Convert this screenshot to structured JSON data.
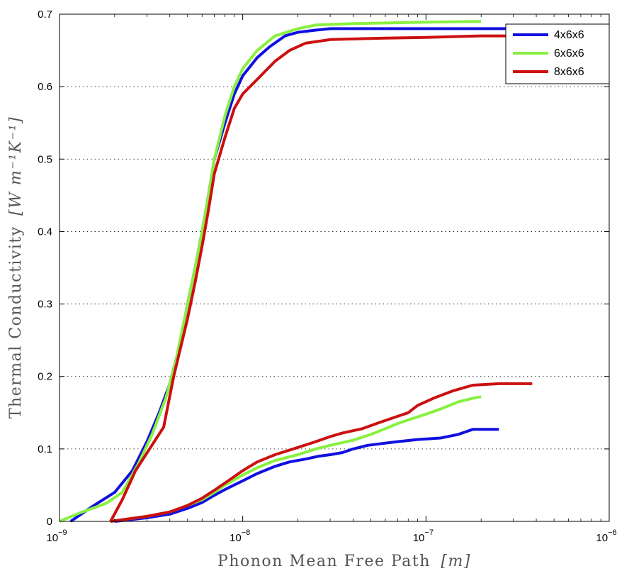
{
  "chart_data": {
    "type": "line",
    "title": "",
    "xlabel": "Phonon Mean Free Path",
    "xlabel_unit": "[m]",
    "ylabel": "Thermal Conductivity",
    "ylabel_unit": "[W m⁻¹K⁻¹]",
    "xscale": "log",
    "xlim": [
      1e-09,
      1e-06
    ],
    "ylim": [
      0,
      0.7
    ],
    "x_ticks": [
      {
        "value": 1e-09,
        "base": "10",
        "exp": "−9"
      },
      {
        "value": 1e-08,
        "base": "10",
        "exp": "−8"
      },
      {
        "value": 1e-07,
        "base": "10",
        "exp": "−7"
      },
      {
        "value": 1e-06,
        "base": "10",
        "exp": "−6"
      }
    ],
    "y_ticks": [
      {
        "value": 0,
        "label": "0"
      },
      {
        "value": 0.1,
        "label": "0.1"
      },
      {
        "value": 0.2,
        "label": "0.2"
      },
      {
        "value": 0.3,
        "label": "0.3"
      },
      {
        "value": 0.4,
        "label": "0.4"
      },
      {
        "value": 0.5,
        "label": "0.5"
      },
      {
        "value": 0.6,
        "label": "0.6"
      },
      {
        "value": 0.7,
        "label": "0.7"
      }
    ],
    "grid": "horizontal-dotted",
    "legend_position": "top-right",
    "legend": [
      {
        "label": "4x6x6",
        "color": "#1010e0"
      },
      {
        "label": "6x6x6",
        "color": "#88f040"
      },
      {
        "label": "8x6x6",
        "color": "#cc1010"
      }
    ],
    "series": [
      {
        "legend_index": 0,
        "color": "#1010e0",
        "group": "upper",
        "points": [
          [
            1.15e-09,
            0
          ],
          [
            1.5e-09,
            0.02
          ],
          [
            2e-09,
            0.04
          ],
          [
            2.5e-09,
            0.07
          ],
          [
            3e-09,
            0.11
          ],
          [
            3.5e-09,
            0.15
          ],
          [
            4e-09,
            0.19
          ],
          [
            4.5e-09,
            0.24
          ],
          [
            5e-09,
            0.3
          ],
          [
            5.5e-09,
            0.35
          ],
          [
            6e-09,
            0.4
          ],
          [
            6.5e-09,
            0.45
          ],
          [
            7e-09,
            0.5
          ],
          [
            8e-09,
            0.55
          ],
          [
            9e-09,
            0.59
          ],
          [
            1e-08,
            0.615
          ],
          [
            1.2e-08,
            0.64
          ],
          [
            1.4e-08,
            0.655
          ],
          [
            1.7e-08,
            0.67
          ],
          [
            2e-08,
            0.675
          ],
          [
            2.5e-08,
            0.678
          ],
          [
            3e-08,
            0.68
          ],
          [
            1e-07,
            0.68
          ],
          [
            2e-07,
            0.68
          ],
          [
            5e-07,
            0.68
          ]
        ]
      },
      {
        "legend_index": 1,
        "color": "#88f040",
        "group": "upper",
        "points": [
          [
            1e-09,
            0
          ],
          [
            1.3e-09,
            0.012
          ],
          [
            1.8e-09,
            0.025
          ],
          [
            2.2e-09,
            0.04
          ],
          [
            2.7e-09,
            0.08
          ],
          [
            3.2e-09,
            0.12
          ],
          [
            3.8e-09,
            0.17
          ],
          [
            4.3e-09,
            0.22
          ],
          [
            5e-09,
            0.3
          ],
          [
            5.5e-09,
            0.35
          ],
          [
            6e-09,
            0.4
          ],
          [
            6.5e-09,
            0.45
          ],
          [
            7e-09,
            0.5
          ],
          [
            8e-09,
            0.56
          ],
          [
            9e-09,
            0.6
          ],
          [
            1e-08,
            0.625
          ],
          [
            1.2e-08,
            0.65
          ],
          [
            1.5e-08,
            0.67
          ],
          [
            2e-08,
            0.68
          ],
          [
            2.5e-08,
            0.685
          ],
          [
            4e-08,
            0.687
          ],
          [
            1e-07,
            0.689
          ],
          [
            2e-07,
            0.69
          ]
        ]
      },
      {
        "legend_index": 2,
        "color": "#cc1010",
        "group": "upper",
        "points": [
          [
            1.9e-09,
            0
          ],
          [
            2.2e-09,
            0.03
          ],
          [
            2.6e-09,
            0.07
          ],
          [
            3.1e-09,
            0.1
          ],
          [
            3.7e-09,
            0.13
          ],
          [
            4.2e-09,
            0.2
          ],
          [
            5e-09,
            0.28
          ],
          [
            5.5e-09,
            0.33
          ],
          [
            6e-09,
            0.38
          ],
          [
            6.5e-09,
            0.43
          ],
          [
            7e-09,
            0.48
          ],
          [
            8e-09,
            0.53
          ],
          [
            9e-09,
            0.57
          ],
          [
            1e-08,
            0.59
          ],
          [
            1.2e-08,
            0.61
          ],
          [
            1.5e-08,
            0.635
          ],
          [
            1.8e-08,
            0.65
          ],
          [
            2.2e-08,
            0.66
          ],
          [
            3e-08,
            0.665
          ],
          [
            6e-08,
            0.667
          ],
          [
            1e-07,
            0.668
          ],
          [
            2e-07,
            0.67
          ],
          [
            5e-07,
            0.67
          ]
        ]
      },
      {
        "legend_index": 0,
        "color": "#1010e0",
        "group": "lower",
        "points": [
          [
            2e-09,
            0
          ],
          [
            3e-09,
            0.005
          ],
          [
            4e-09,
            0.01
          ],
          [
            5e-09,
            0.018
          ],
          [
            6e-09,
            0.026
          ],
          [
            7e-09,
            0.036
          ],
          [
            8e-09,
            0.044
          ],
          [
            1e-08,
            0.056
          ],
          [
            1.2e-08,
            0.066
          ],
          [
            1.5e-08,
            0.076
          ],
          [
            1.8e-08,
            0.082
          ],
          [
            2.2e-08,
            0.086
          ],
          [
            2.6e-08,
            0.09
          ],
          [
            3e-08,
            0.092
          ],
          [
            3.5e-08,
            0.095
          ],
          [
            4e-08,
            0.1
          ],
          [
            4.8e-08,
            0.105
          ],
          [
            6e-08,
            0.108
          ],
          [
            7e-08,
            0.11
          ],
          [
            9e-08,
            0.113
          ],
          [
            1.2e-07,
            0.115
          ],
          [
            1.5e-07,
            0.12
          ],
          [
            1.8e-07,
            0.127
          ],
          [
            2.5e-07,
            0.127
          ]
        ]
      },
      {
        "legend_index": 1,
        "color": "#88f040",
        "group": "lower",
        "points": [
          [
            1.9e-09,
            0
          ],
          [
            3e-09,
            0.007
          ],
          [
            4e-09,
            0.013
          ],
          [
            5e-09,
            0.022
          ],
          [
            6e-09,
            0.03
          ],
          [
            7e-09,
            0.04
          ],
          [
            8e-09,
            0.05
          ],
          [
            1e-08,
            0.064
          ],
          [
            1.2e-08,
            0.074
          ],
          [
            1.5e-08,
            0.084
          ],
          [
            2e-08,
            0.092
          ],
          [
            2.5e-08,
            0.1
          ],
          [
            3e-08,
            0.105
          ],
          [
            4e-08,
            0.112
          ],
          [
            5e-08,
            0.12
          ],
          [
            6e-08,
            0.128
          ],
          [
            7e-08,
            0.135
          ],
          [
            8e-08,
            0.14
          ],
          [
            1e-07,
            0.148
          ],
          [
            1.2e-07,
            0.155
          ],
          [
            1.5e-07,
            0.165
          ],
          [
            1.8e-07,
            0.17
          ],
          [
            2e-07,
            0.172
          ]
        ]
      },
      {
        "legend_index": 2,
        "color": "#cc1010",
        "group": "lower",
        "points": [
          [
            1.9e-09,
            0
          ],
          [
            3e-09,
            0.007
          ],
          [
            4e-09,
            0.013
          ],
          [
            5e-09,
            0.022
          ],
          [
            6e-09,
            0.032
          ],
          [
            7e-09,
            0.043
          ],
          [
            8e-09,
            0.053
          ],
          [
            1e-08,
            0.07
          ],
          [
            1.2e-08,
            0.082
          ],
          [
            1.5e-08,
            0.092
          ],
          [
            2e-08,
            0.102
          ],
          [
            2.5e-08,
            0.11
          ],
          [
            3e-08,
            0.117
          ],
          [
            3.5e-08,
            0.122
          ],
          [
            4.5e-08,
            0.128
          ],
          [
            5.5e-08,
            0.136
          ],
          [
            7e-08,
            0.145
          ],
          [
            8e-08,
            0.15
          ],
          [
            9e-08,
            0.16
          ],
          [
            1.1e-07,
            0.17
          ],
          [
            1.4e-07,
            0.18
          ],
          [
            1.8e-07,
            0.188
          ],
          [
            2.5e-07,
            0.19
          ],
          [
            3.8e-07,
            0.19
          ]
        ]
      }
    ]
  }
}
